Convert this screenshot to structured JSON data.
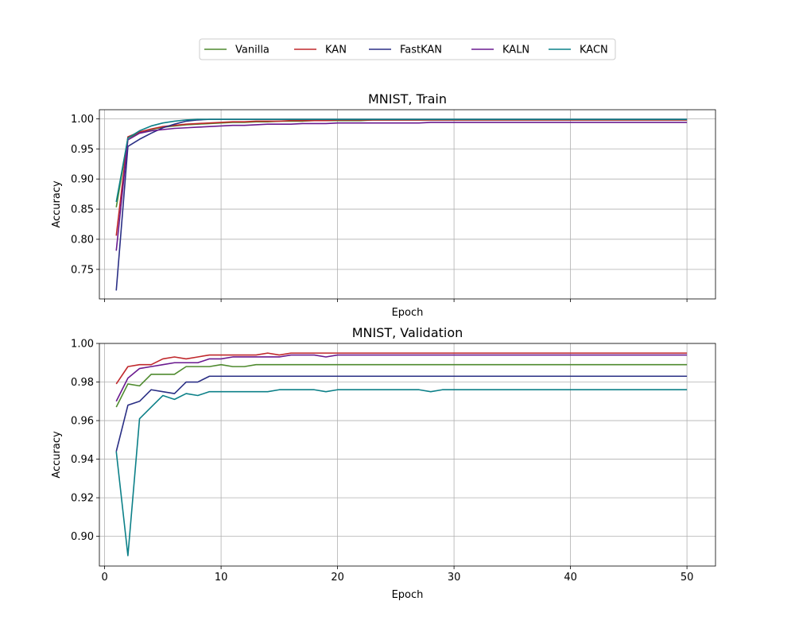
{
  "legend": {
    "placement": "top-center",
    "entries": [
      {
        "name": "Vanilla",
        "color": "#4e8a2e"
      },
      {
        "name": "KAN",
        "color": "#c0282c"
      },
      {
        "name": "FastKAN",
        "color": "#2a2f85"
      },
      {
        "name": "KALN",
        "color": "#6a1a8f"
      },
      {
        "name": "KACN",
        "color": "#0c8088"
      }
    ]
  },
  "chart_data": [
    {
      "type": "line",
      "title": "MNIST, Train",
      "xlabel": "Epoch",
      "ylabel": "Accuracy",
      "xlim": [
        -0.45,
        52.45
      ],
      "ylim": [
        0.701,
        1.015
      ],
      "x_ticks": [
        0,
        10,
        20,
        30,
        40,
        50
      ],
      "x_tick_labels_visible": false,
      "y_ticks": [
        0.75,
        0.8,
        0.85,
        0.9,
        0.95,
        1.0
      ],
      "y_tick_labels": [
        "0.75",
        "0.80",
        "0.85",
        "0.90",
        "0.95",
        "1.00"
      ],
      "grid": true,
      "series": [
        {
          "name": "Vanilla",
          "color": "#4e8a2e",
          "values": [
            0.853,
            0.968,
            0.977,
            0.982,
            0.986,
            0.988,
            0.99,
            0.991,
            0.992,
            0.993,
            0.994,
            0.994,
            0.995,
            0.995,
            0.996,
            0.996,
            0.996,
            0.997,
            0.997,
            0.997,
            0.997,
            0.997,
            0.998,
            0.998,
            0.998,
            0.998,
            0.998,
            0.998,
            0.998,
            0.998,
            0.998,
            0.998,
            0.998,
            0.998,
            0.998,
            0.998,
            0.998,
            0.998,
            0.998,
            0.998,
            0.998,
            0.998,
            0.998,
            0.998,
            0.998,
            0.998,
            0.998,
            0.998,
            0.998,
            0.998
          ]
        },
        {
          "name": "KAN",
          "color": "#c0282c",
          "values": [
            0.806,
            0.97,
            0.978,
            0.983,
            0.987,
            0.989,
            0.991,
            0.992,
            0.993,
            0.994,
            0.995,
            0.995,
            0.996,
            0.996,
            0.996,
            0.997,
            0.997,
            0.997,
            0.997,
            0.998,
            0.998,
            0.998,
            0.998,
            0.998,
            0.998,
            0.998,
            0.998,
            0.998,
            0.998,
            0.998,
            0.998,
            0.998,
            0.998,
            0.998,
            0.998,
            0.998,
            0.998,
            0.998,
            0.998,
            0.998,
            0.998,
            0.998,
            0.998,
            0.998,
            0.998,
            0.998,
            0.998,
            0.998,
            0.998,
            0.998
          ]
        },
        {
          "name": "FastKAN",
          "color": "#2a2f85",
          "values": [
            0.715,
            0.954,
            0.966,
            0.976,
            0.985,
            0.991,
            0.996,
            0.998,
            0.999,
            0.999,
            0.999,
            0.999,
            0.999,
            0.999,
            0.999,
            0.999,
            0.999,
            0.999,
            0.999,
            0.999,
            0.999,
            0.999,
            0.999,
            0.999,
            0.999,
            0.999,
            0.999,
            0.999,
            0.999,
            0.999,
            0.999,
            0.999,
            0.999,
            0.999,
            0.999,
            0.999,
            0.999,
            0.999,
            0.999,
            0.999,
            0.999,
            0.999,
            0.999,
            0.999,
            0.999,
            0.999,
            0.999,
            0.999,
            0.999,
            0.999
          ]
        },
        {
          "name": "KALN",
          "color": "#6a1a8f",
          "values": [
            0.781,
            0.965,
            0.976,
            0.98,
            0.982,
            0.984,
            0.985,
            0.986,
            0.987,
            0.988,
            0.989,
            0.989,
            0.99,
            0.991,
            0.991,
            0.991,
            0.992,
            0.992,
            0.992,
            0.993,
            0.993,
            0.993,
            0.993,
            0.993,
            0.993,
            0.993,
            0.993,
            0.994,
            0.994,
            0.994,
            0.994,
            0.994,
            0.994,
            0.994,
            0.994,
            0.994,
            0.994,
            0.994,
            0.994,
            0.994,
            0.994,
            0.994,
            0.994,
            0.994,
            0.994,
            0.994,
            0.994,
            0.994,
            0.994,
            0.994
          ]
        },
        {
          "name": "KACN",
          "color": "#0c8088",
          "values": [
            0.862,
            0.968,
            0.98,
            0.988,
            0.993,
            0.996,
            0.998,
            0.999,
            0.999,
            0.999,
            0.999,
            0.999,
            0.999,
            0.999,
            0.999,
            0.999,
            0.999,
            0.999,
            0.999,
            0.999,
            0.999,
            0.999,
            0.999,
            0.999,
            0.999,
            0.999,
            0.999,
            0.999,
            0.999,
            0.999,
            0.999,
            0.999,
            0.999,
            0.999,
            0.999,
            0.999,
            0.999,
            0.999,
            0.999,
            0.999,
            0.999,
            0.999,
            0.999,
            0.999,
            0.999,
            0.999,
            0.999,
            0.999,
            0.999,
            0.999
          ]
        }
      ]
    },
    {
      "type": "line",
      "title": "MNIST, Validation",
      "xlabel": "Epoch",
      "ylabel": "Accuracy",
      "xlim": [
        -0.45,
        52.45
      ],
      "ylim": [
        0.8846,
        1.0
      ],
      "x_ticks": [
        0,
        10,
        20,
        30,
        40,
        50
      ],
      "x_tick_labels": [
        "0",
        "10",
        "20",
        "30",
        "40",
        "50"
      ],
      "y_ticks": [
        0.9,
        0.92,
        0.94,
        0.96,
        0.98,
        1.0
      ],
      "y_tick_labels": [
        "0.90",
        "0.92",
        "0.94",
        "0.96",
        "0.98",
        "1.00"
      ],
      "grid": true,
      "series": [
        {
          "name": "Vanilla",
          "color": "#4e8a2e",
          "values": [
            0.967,
            0.979,
            0.978,
            0.984,
            0.984,
            0.984,
            0.988,
            0.988,
            0.988,
            0.989,
            0.988,
            0.988,
            0.989,
            0.989,
            0.989,
            0.989,
            0.989,
            0.989,
            0.989,
            0.989,
            0.989,
            0.989,
            0.989,
            0.989,
            0.989,
            0.989,
            0.989,
            0.989,
            0.989,
            0.989,
            0.989,
            0.989,
            0.989,
            0.989,
            0.989,
            0.989,
            0.989,
            0.989,
            0.989,
            0.989,
            0.989,
            0.989,
            0.989,
            0.989,
            0.989,
            0.989,
            0.989,
            0.989,
            0.989,
            0.989
          ]
        },
        {
          "name": "KAN",
          "color": "#c0282c",
          "values": [
            0.979,
            0.988,
            0.989,
            0.989,
            0.992,
            0.993,
            0.992,
            0.993,
            0.994,
            0.994,
            0.994,
            0.994,
            0.994,
            0.995,
            0.994,
            0.995,
            0.995,
            0.995,
            0.995,
            0.995,
            0.995,
            0.995,
            0.995,
            0.995,
            0.995,
            0.995,
            0.995,
            0.995,
            0.995,
            0.995,
            0.995,
            0.995,
            0.995,
            0.995,
            0.995,
            0.995,
            0.995,
            0.995,
            0.995,
            0.995,
            0.995,
            0.995,
            0.995,
            0.995,
            0.995,
            0.995,
            0.995,
            0.995,
            0.995,
            0.995
          ]
        },
        {
          "name": "FastKAN",
          "color": "#2a2f85",
          "values": [
            0.944,
            0.968,
            0.97,
            0.976,
            0.975,
            0.974,
            0.98,
            0.98,
            0.983,
            0.983,
            0.983,
            0.983,
            0.983,
            0.983,
            0.983,
            0.983,
            0.983,
            0.983,
            0.983,
            0.983,
            0.983,
            0.983,
            0.983,
            0.983,
            0.983,
            0.983,
            0.983,
            0.983,
            0.983,
            0.983,
            0.983,
            0.983,
            0.983,
            0.983,
            0.983,
            0.983,
            0.983,
            0.983,
            0.983,
            0.983,
            0.983,
            0.983,
            0.983,
            0.983,
            0.983,
            0.983,
            0.983,
            0.983,
            0.983,
            0.983
          ]
        },
        {
          "name": "KALN",
          "color": "#6a1a8f",
          "values": [
            0.97,
            0.982,
            0.987,
            0.988,
            0.989,
            0.99,
            0.99,
            0.99,
            0.992,
            0.992,
            0.993,
            0.993,
            0.993,
            0.993,
            0.993,
            0.994,
            0.994,
            0.994,
            0.993,
            0.994,
            0.994,
            0.994,
            0.994,
            0.994,
            0.994,
            0.994,
            0.994,
            0.994,
            0.994,
            0.994,
            0.994,
            0.994,
            0.994,
            0.994,
            0.994,
            0.994,
            0.994,
            0.994,
            0.994,
            0.994,
            0.994,
            0.994,
            0.994,
            0.994,
            0.994,
            0.994,
            0.994,
            0.994,
            0.994,
            0.994
          ]
        },
        {
          "name": "KACN",
          "color": "#0c8088",
          "values": [
            0.944,
            0.89,
            0.961,
            0.967,
            0.973,
            0.971,
            0.974,
            0.973,
            0.975,
            0.975,
            0.975,
            0.975,
            0.975,
            0.975,
            0.976,
            0.976,
            0.976,
            0.976,
            0.975,
            0.976,
            0.976,
            0.976,
            0.976,
            0.976,
            0.976,
            0.976,
            0.976,
            0.975,
            0.976,
            0.976,
            0.976,
            0.976,
            0.976,
            0.976,
            0.976,
            0.976,
            0.976,
            0.976,
            0.976,
            0.976,
            0.976,
            0.976,
            0.976,
            0.976,
            0.976,
            0.976,
            0.976,
            0.976,
            0.976,
            0.976
          ]
        }
      ]
    }
  ]
}
